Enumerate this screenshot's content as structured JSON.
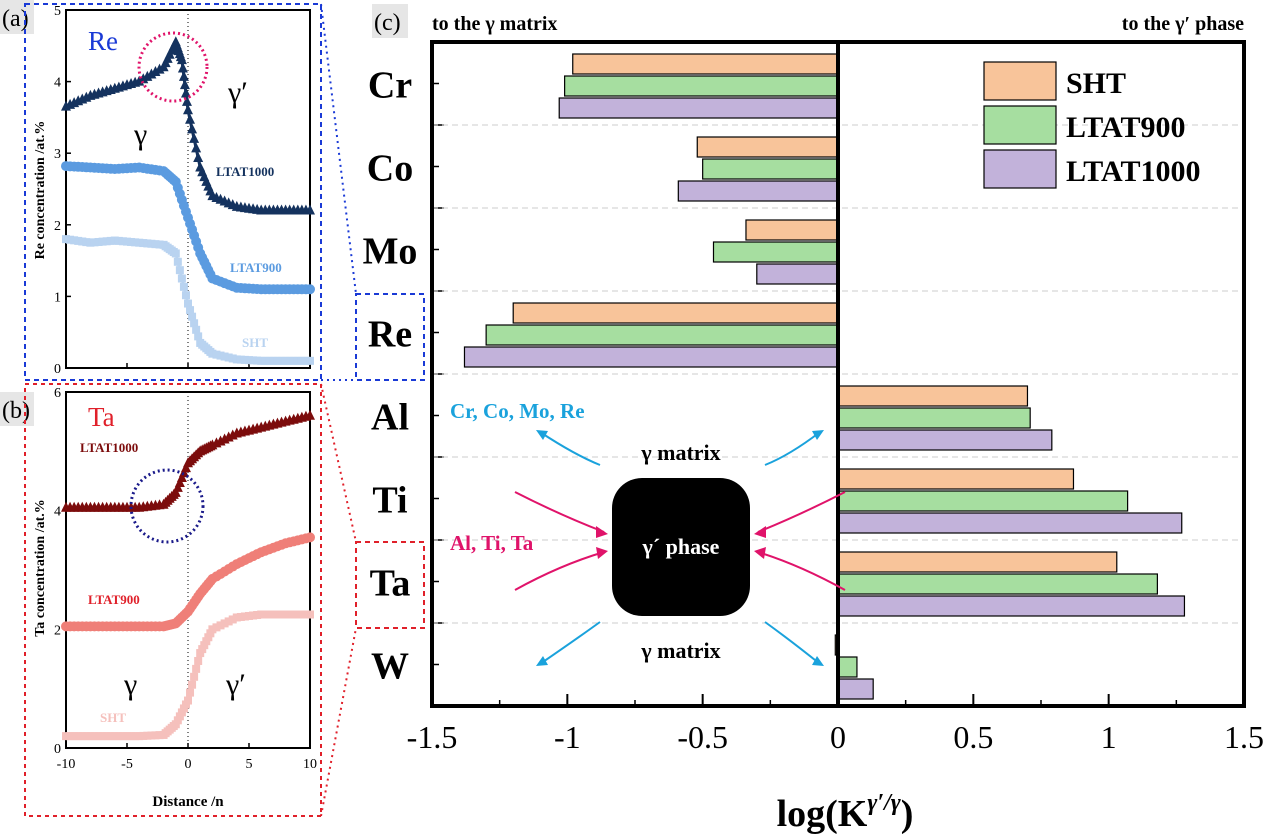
{
  "panels": {
    "a": {
      "label": "(a)",
      "element": "Re",
      "ylabel": "Re concentration /at.%",
      "gamma": "γ",
      "gamma_prime": "γ′"
    },
    "b": {
      "label": "(b)",
      "element": "Ta",
      "ylabel": "Ta concentration /at.%",
      "xlabel": "Distance /n",
      "gamma": "γ",
      "gamma_prime": "γ′"
    },
    "c": {
      "label": "(c)",
      "left_heading": "to the γ matrix",
      "right_heading": "to the γ′ phase",
      "xlabel_main": "log(K",
      "xlabel_sup": "γ′/γ",
      "xlabel_close": ")"
    }
  },
  "schematic": {
    "group_out": "Cr, Co, Mo, Re",
    "group_in": "Al, Ti, Ta",
    "matrix_top": "γ matrix",
    "matrix_bottom": "γ matrix",
    "phase": "γ´ phase"
  },
  "colors": {
    "SHT": "#f8c49a",
    "LTAT900": "#a6dea0",
    "LTAT1000": "#c2b2da",
    "re_sht": "#b9d3f0",
    "re_900": "#5b9be0",
    "re_1000": "#14325e",
    "ta_sht": "#f5c0bc",
    "ta_900": "#ef7f78",
    "ta_1000": "#7c0c0c",
    "blue_box": "#1a3ad6",
    "red_box": "#e0202a",
    "cyan_text": "#1aa2dc",
    "pink_text": "#e0136a"
  },
  "chart_data": [
    {
      "type": "scatter",
      "panel": "a",
      "xlim": [
        -10,
        10
      ],
      "ylim": [
        0,
        5
      ],
      "yticks": [
        0,
        1,
        2,
        3,
        4,
        5
      ],
      "series": [
        {
          "name": "LTAT1000",
          "x": [
            -10,
            -8,
            -6,
            -4,
            -2,
            -1,
            -0.5,
            0,
            1,
            2,
            4,
            6,
            8,
            10
          ],
          "y": [
            3.65,
            3.8,
            3.9,
            4.0,
            4.2,
            4.55,
            4.3,
            3.6,
            2.8,
            2.4,
            2.25,
            2.2,
            2.2,
            2.2
          ]
        },
        {
          "name": "LTAT900",
          "x": [
            -10,
            -8,
            -6,
            -4,
            -2,
            -1,
            0,
            1,
            2,
            4,
            6,
            8,
            10
          ],
          "y": [
            2.82,
            2.8,
            2.78,
            2.8,
            2.75,
            2.6,
            2.1,
            1.6,
            1.25,
            1.12,
            1.1,
            1.1,
            1.1
          ]
        },
        {
          "name": "SHT",
          "x": [
            -10,
            -8,
            -6,
            -4,
            -2,
            -1,
            0,
            1,
            2,
            4,
            6,
            8,
            10
          ],
          "y": [
            1.8,
            1.75,
            1.78,
            1.75,
            1.72,
            1.6,
            0.9,
            0.35,
            0.2,
            0.12,
            0.1,
            0.1,
            0.1
          ]
        }
      ]
    },
    {
      "type": "scatter",
      "panel": "b",
      "xlim": [
        -10,
        10
      ],
      "ylim": [
        0,
        6
      ],
      "xticks": [
        -10,
        -5,
        0,
        5,
        10
      ],
      "yticks": [
        0,
        2,
        4,
        6
      ],
      "series": [
        {
          "name": "LTAT1000",
          "x": [
            -10,
            -8,
            -6,
            -4,
            -2,
            -1,
            0,
            1,
            2,
            4,
            6,
            8,
            10
          ],
          "y": [
            4.05,
            4.05,
            4.05,
            4.05,
            4.1,
            4.3,
            4.8,
            5.0,
            5.1,
            5.3,
            5.4,
            5.5,
            5.6
          ]
        },
        {
          "name": "LTAT900",
          "x": [
            -10,
            -8,
            -6,
            -4,
            -2,
            -1,
            0,
            1,
            2,
            4,
            6,
            8,
            10
          ],
          "y": [
            2.05,
            2.05,
            2.05,
            2.05,
            2.05,
            2.1,
            2.3,
            2.6,
            2.85,
            3.1,
            3.3,
            3.45,
            3.55
          ]
        },
        {
          "name": "SHT",
          "x": [
            -10,
            -8,
            -6,
            -4,
            -2,
            -1,
            0,
            1,
            2,
            4,
            6,
            8,
            10
          ],
          "y": [
            0.2,
            0.2,
            0.2,
            0.2,
            0.22,
            0.4,
            0.8,
            1.6,
            2.0,
            2.2,
            2.25,
            2.25,
            2.25
          ]
        }
      ]
    },
    {
      "type": "bar",
      "panel": "c",
      "orientation": "horizontal",
      "categories": [
        "Cr",
        "Co",
        "Mo",
        "Re",
        "Al",
        "Ti",
        "Ta",
        "W"
      ],
      "xlim": [
        -1.5,
        1.5
      ],
      "xticks": [
        "-1.5",
        "-1",
        "-0.5",
        "0",
        "0.5",
        "1",
        "1.5"
      ],
      "legend": "top-right",
      "series": [
        {
          "name": "SHT",
          "values": [
            -0.98,
            -0.52,
            -0.34,
            -1.2,
            0.7,
            0.87,
            1.03,
            -0.01
          ]
        },
        {
          "name": "LTAT900",
          "values": [
            -1.01,
            -0.5,
            -0.46,
            -1.3,
            0.71,
            1.07,
            1.18,
            0.07
          ]
        },
        {
          "name": "LTAT1000",
          "values": [
            -1.03,
            -0.59,
            -0.3,
            -1.38,
            0.79,
            1.27,
            1.28,
            0.13
          ]
        }
      ]
    }
  ]
}
